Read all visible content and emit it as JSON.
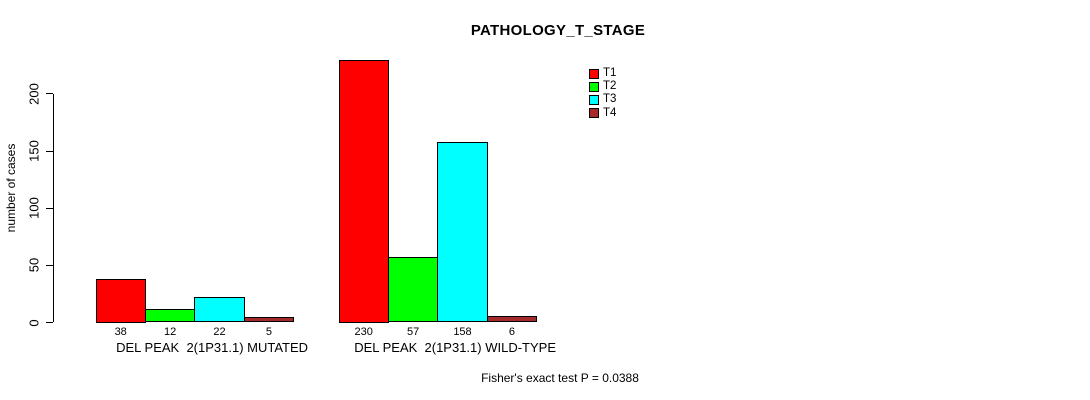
{
  "title": "PATHOLOGY_T_STAGE",
  "chart_data": {
    "type": "bar",
    "title": "PATHOLOGY_T_STAGE",
    "xlabel": "",
    "ylabel": "number of cases",
    "ylim": [
      0,
      235
    ],
    "yticks": [
      0,
      50,
      100,
      150,
      200
    ],
    "grid": false,
    "legend_position": "top-right",
    "series_names": [
      "T1",
      "T2",
      "T3",
      "T4"
    ],
    "series_colors": [
      "#ff0000",
      "#00ff00",
      "#00ffff",
      "#a52a2a"
    ],
    "categories": [
      "DEL PEAK  2(1P31.1) MUTATED",
      "DEL PEAK  2(1P31.1) WILD-TYPE"
    ],
    "groups": [
      {
        "label": "DEL PEAK  2(1P31.1) MUTATED",
        "values": [
          38,
          12,
          22,
          5
        ]
      },
      {
        "label": "DEL PEAK  2(1P31.1) WILD-TYPE",
        "values": [
          230,
          57,
          158,
          6
        ]
      }
    ],
    "bar_value_labels": true,
    "annotation": "Fisher's exact test P = 0.0388"
  }
}
